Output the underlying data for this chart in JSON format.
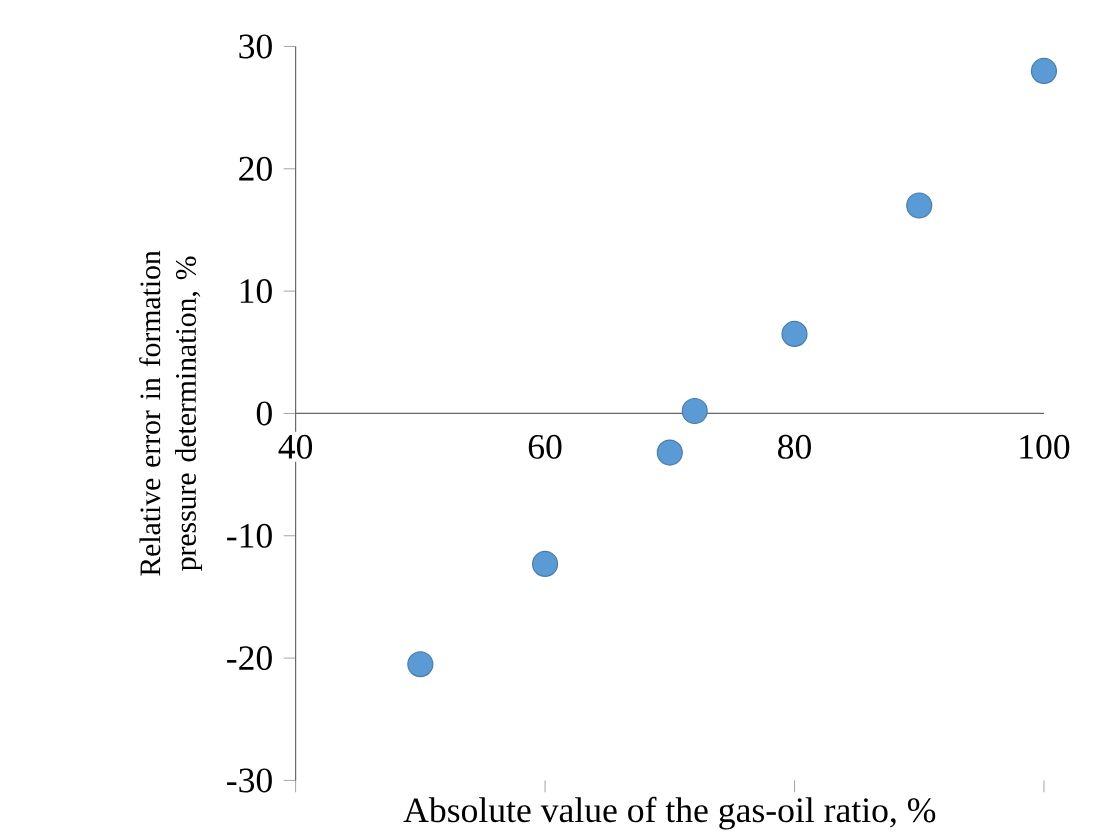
{
  "chart_data": {
    "type": "scatter",
    "xlabel": "Absolute value of the gas-oil ratio, %",
    "ylabel": "Relative error in formation pressure determination, %",
    "x": [
      50,
      60,
      70,
      72,
      80,
      90,
      100
    ],
    "series": [
      {
        "color": "#5b9bd5",
        "values": [
          -20.5,
          -12.3,
          -3.2,
          0.2,
          6.5,
          17,
          28
        ]
      }
    ],
    "marker": "circle",
    "grid": false,
    "xlim": [
      40,
      100
    ],
    "xticks": [
      40,
      60,
      80,
      100
    ],
    "ylim": [
      -30,
      30
    ],
    "yticks": [
      -30,
      -20,
      -10,
      0,
      10,
      20,
      30
    ]
  }
}
